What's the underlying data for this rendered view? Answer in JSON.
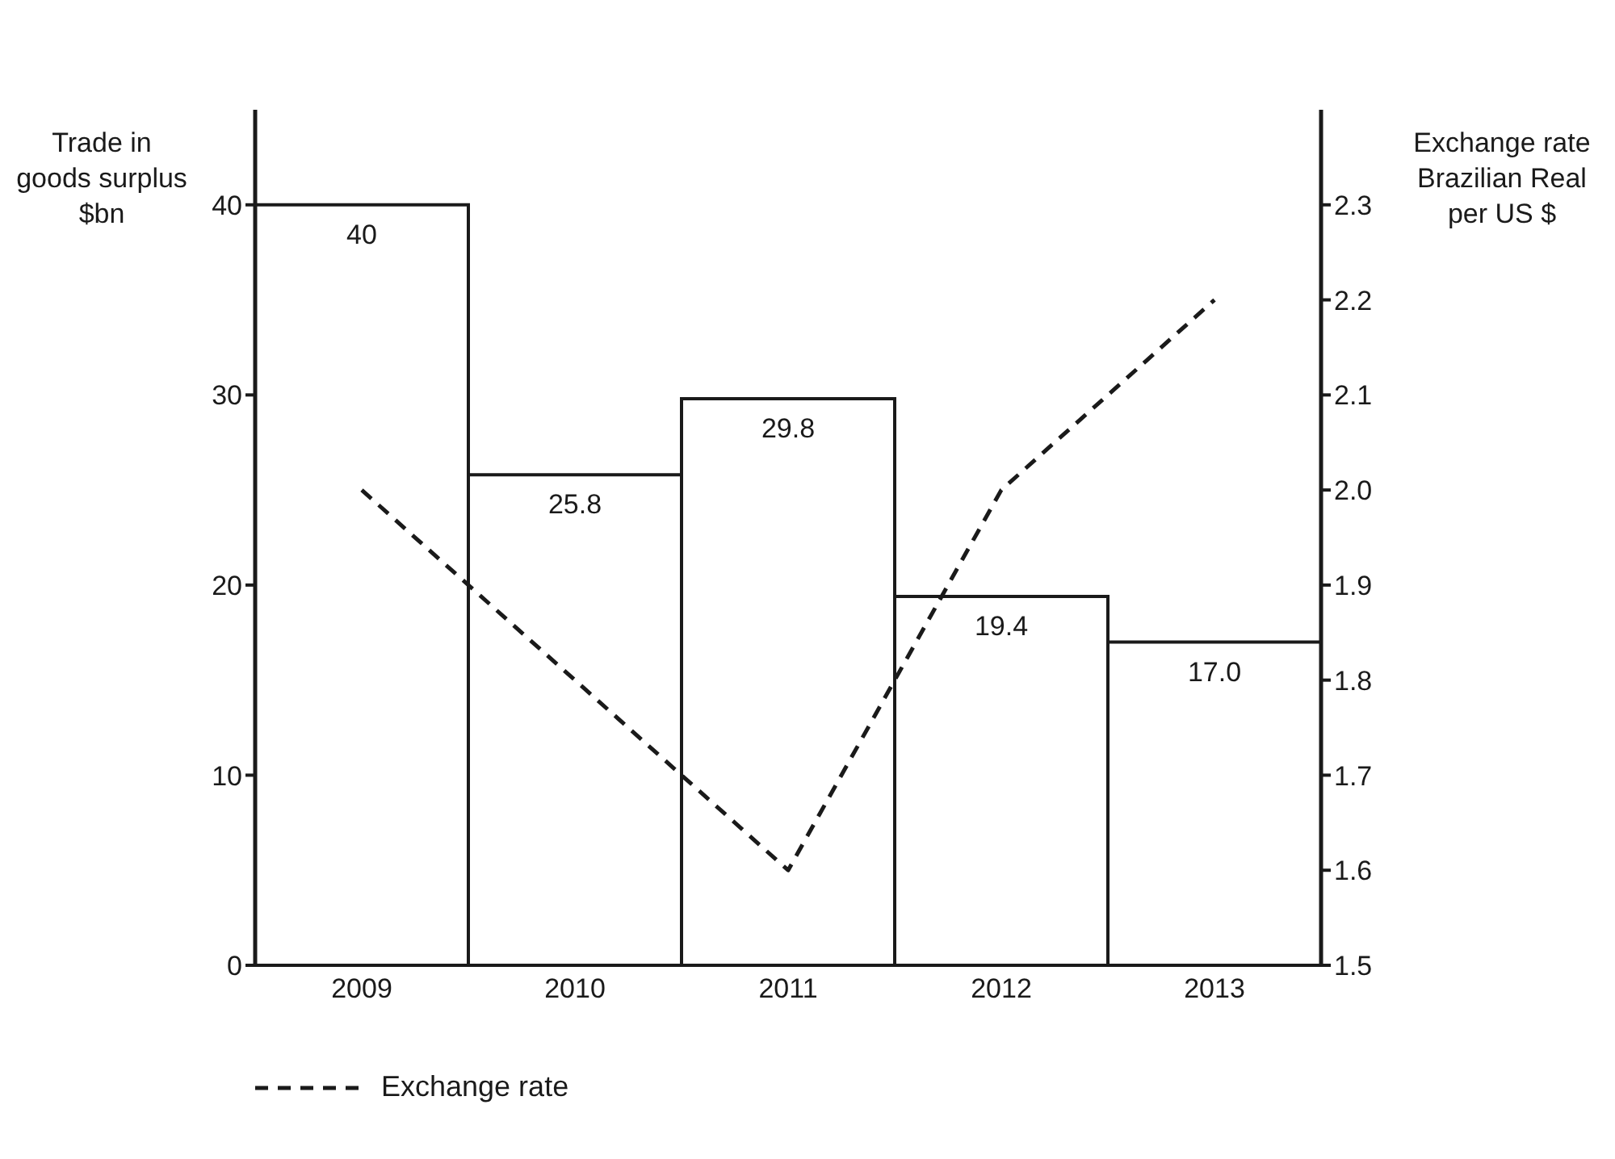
{
  "chart_data": {
    "type": "bar",
    "categories": [
      "2009",
      "2010",
      "2011",
      "2012",
      "2013"
    ],
    "ylabel": "Trade in goods surplus $bn",
    "y2label": "Exchange rate Brazilian Real per US $",
    "series": [
      {
        "color": "#ffffff",
        "values": [
          40,
          25.8,
          29.8,
          19.4,
          17.0
        ],
        "value_labels": [
          "40",
          "25.8",
          "29.8",
          "19.4",
          "17.0"
        ]
      },
      {
        "type": "line",
        "name": "Exchange rate",
        "color": "#1a1a1a",
        "axis": "y2",
        "values": [
          2.0,
          1.8,
          1.6,
          2.0,
          2.2
        ],
        "line_style": "dashed",
        "marker": "none"
      }
    ],
    "ylim": [
      0,
      45
    ],
    "yticks": [
      0,
      10,
      20,
      30,
      40
    ],
    "y2lim": [
      1.5,
      2.4
    ],
    "y2ticks": [
      1.5,
      1.6,
      1.7,
      1.8,
      1.9,
      {
        "value": 2.0,
        "label": "2.0"
      },
      2.1,
      2.2,
      2.3
    ],
    "grid": false,
    "legend": "bottom left"
  }
}
